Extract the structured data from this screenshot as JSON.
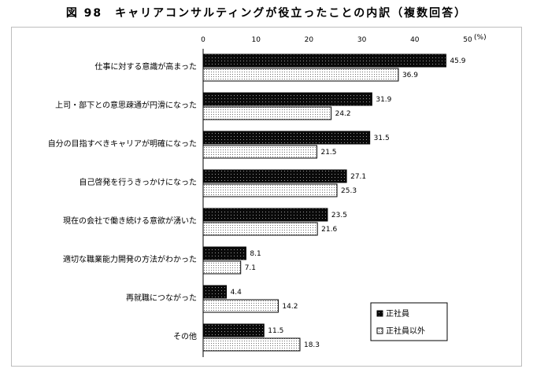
{
  "chart_data": {
    "type": "bar",
    "orientation": "horizontal",
    "title": "図 98　キャリアコンサルティングが役立ったことの内訳（複数回答）",
    "unit": "(%)",
    "xlim": [
      0,
      50
    ],
    "ticks": [
      "0",
      "10",
      "20",
      "30",
      "40",
      "50"
    ],
    "categories": [
      "仕事に対する意識が高まった",
      "上司・部下との意思疎通が円滑になった",
      "自分の目指すべきキャリアが明確になった",
      "自己啓発を行うきっかけになった",
      "現在の会社で働き続ける意欲が湧いた",
      "適切な職業能力開発の方法がわかった",
      "再就職につながった",
      "その他"
    ],
    "series": [
      {
        "name": "正社員",
        "values": [
          45.9,
          31.9,
          31.5,
          27.1,
          23.5,
          8.1,
          4.4,
          11.5
        ],
        "labels": [
          "45.9",
          "31.9",
          "31.5",
          "27.1",
          "23.5",
          "8.1",
          "4.4",
          "11.5"
        ]
      },
      {
        "name": "正社員以外",
        "values": [
          36.9,
          24.2,
          21.5,
          25.3,
          21.6,
          7.1,
          14.2,
          18.3
        ],
        "labels": [
          "36.9",
          "24.2",
          "21.5",
          "25.3",
          "21.6",
          "7.1",
          "14.2",
          "18.3"
        ]
      }
    ],
    "legend": {
      "position": "bottom-right"
    },
    "grid": false
  }
}
